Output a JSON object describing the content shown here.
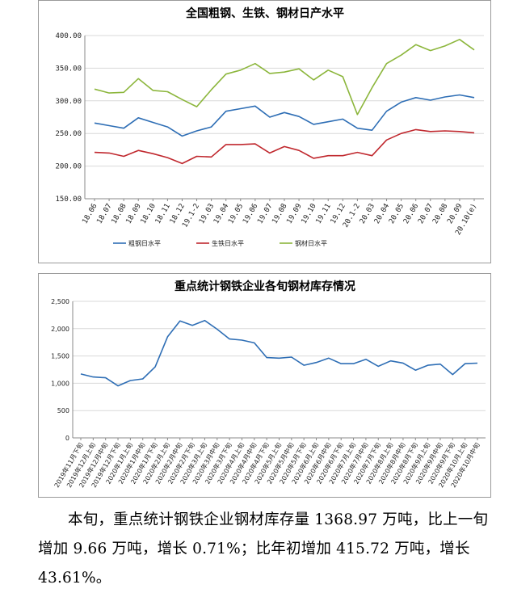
{
  "chart_data": [
    {
      "type": "line",
      "title": "全国粗钢、生铁、钢材日产水平",
      "ylim": [
        150,
        400
      ],
      "ytick_labels": [
        "150.00",
        "200.00",
        "250.00",
        "300.00",
        "350.00",
        "400.00"
      ],
      "grid": true,
      "legend_position": "bottom",
      "categories": [
        "18.06",
        "18.07",
        "18.08",
        "18.09",
        "18.10",
        "18.11",
        "18.12",
        "19.1-2",
        "19.03",
        "19.04",
        "19.05",
        "19.06",
        "19.07",
        "19.08",
        "19.09",
        "19.10",
        "19.11",
        "19.12",
        "20.1-2",
        "20.03",
        "20.04",
        "20.05",
        "20.06",
        "20.07",
        "20.08",
        "20.09",
        "20.10(e)"
      ],
      "series": [
        {
          "name": "粗钢日水平",
          "color": "#2e6eb5",
          "values": [
            266,
            262,
            258,
            274,
            267,
            260,
            246,
            254,
            260,
            284,
            288,
            292,
            275,
            282,
            276,
            264,
            268,
            272,
            258,
            255,
            284,
            298,
            305,
            301,
            306,
            309,
            305
          ]
        },
        {
          "name": "生铁日水平",
          "color": "#c0282e",
          "values": [
            221,
            220,
            215,
            224,
            219,
            213,
            204,
            215,
            214,
            233,
            233,
            234,
            220,
            230,
            224,
            212,
            216,
            216,
            221,
            216,
            240,
            250,
            256,
            253,
            254,
            253,
            251
          ]
        },
        {
          "name": "钢材日水平",
          "color": "#8cb63c",
          "values": [
            318,
            312,
            313,
            334,
            316,
            314,
            302,
            291,
            317,
            341,
            347,
            357,
            342,
            344,
            349,
            332,
            347,
            337,
            279,
            320,
            357,
            370,
            386,
            377,
            384,
            394,
            378
          ]
        }
      ]
    },
    {
      "type": "line",
      "title": "重点统计钢铁企业各旬钢材库存情况",
      "ylim": [
        0,
        2500
      ],
      "ytick_labels": [
        "0",
        "500",
        "1,000",
        "1,500",
        "2,000",
        "2,500"
      ],
      "grid": true,
      "categories": [
        "2019年11月下旬",
        "2019年12月上旬",
        "2019年12月中旬",
        "2019年12月下旬",
        "2020年1月上旬",
        "2020年1月中旬",
        "2020年1月下旬",
        "2020年2月上旬",
        "2020年2月中旬",
        "2020年2月下旬",
        "2020年3月上旬",
        "2020年3月中旬",
        "2020年3月下旬",
        "2020年4月上旬",
        "2020年4月中旬",
        "2020年4月下旬",
        "2020年5月上旬",
        "2020年5月中旬",
        "2020年5月下旬",
        "2020年6月上旬",
        "2020年6月中旬",
        "2020年6月下旬",
        "2020年7月上旬",
        "2020年7月中旬",
        "2020年7月下旬",
        "2020年8月上旬",
        "2020年8月中旬",
        "2020年8月下旬",
        "2020年9月上旬",
        "2020年9月中旬",
        "2020年9月下旬",
        "2020年10月上旬",
        "2020年10月中旬"
      ],
      "series": [
        {
          "color": "#2e6eb5",
          "values": [
            1170,
            1115,
            1100,
            953,
            1050,
            1080,
            1300,
            1850,
            2140,
            2060,
            2150,
            1990,
            1810,
            1790,
            1740,
            1470,
            1460,
            1480,
            1330,
            1380,
            1460,
            1360,
            1360,
            1440,
            1310,
            1410,
            1370,
            1240,
            1330,
            1350,
            1160,
            1360,
            1369
          ]
        }
      ]
    }
  ],
  "paragraph": "本旬，重点统计钢铁企业钢材库存量 1368.97 万吨，比上一旬增加 9.66 万吨，增长 0.71%；比年初增加 415.72 万吨，增长 43.61%。"
}
